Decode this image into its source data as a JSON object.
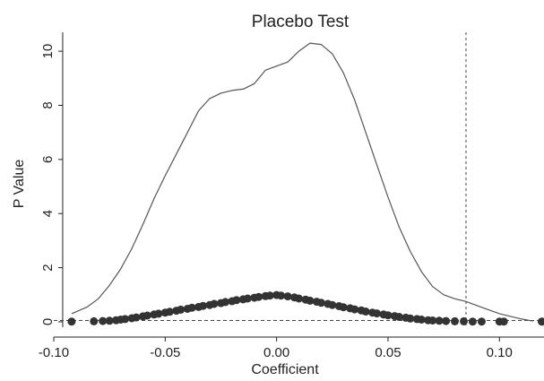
{
  "chart_data": {
    "type": "scatter",
    "title": "Placebo Test",
    "xlabel": "Coefficient",
    "ylabel": "P Value",
    "xlim": [
      -0.1,
      0.12
    ],
    "ylim": [
      -0.2,
      10.7
    ],
    "xticks": [
      -0.1,
      -0.05,
      0.0,
      0.05,
      0.1
    ],
    "xtick_labels": [
      "-0.10",
      "-0.05",
      "0.00",
      "0.05",
      "0.10"
    ],
    "yticks": [
      0,
      2,
      4,
      6,
      8,
      10
    ],
    "ytick_labels": [
      "0",
      "2",
      "4",
      "6",
      "8",
      "10"
    ],
    "grid": false,
    "reference_lines": {
      "vertical_x": 0.085,
      "horizontal_y": 0.05,
      "style": "dashed"
    },
    "density_curve": {
      "x": [
        -0.092,
        -0.085,
        -0.08,
        -0.075,
        -0.07,
        -0.065,
        -0.06,
        -0.055,
        -0.05,
        -0.045,
        -0.04,
        -0.035,
        -0.03,
        -0.025,
        -0.02,
        -0.015,
        -0.01,
        -0.005,
        0.0,
        0.005,
        0.01,
        0.015,
        0.02,
        0.025,
        0.03,
        0.035,
        0.04,
        0.045,
        0.05,
        0.055,
        0.06,
        0.065,
        0.07,
        0.075,
        0.08,
        0.085,
        0.09,
        0.095,
        0.1,
        0.105,
        0.11,
        0.115
      ],
      "y": [
        0.3,
        0.55,
        0.85,
        1.35,
        1.95,
        2.7,
        3.6,
        4.55,
        5.4,
        6.2,
        7.0,
        7.8,
        8.25,
        8.45,
        8.55,
        8.6,
        8.8,
        9.3,
        9.45,
        9.6,
        10.0,
        10.3,
        10.25,
        9.9,
        9.2,
        8.2,
        7.0,
        5.8,
        4.6,
        3.5,
        2.6,
        1.85,
        1.3,
        1.0,
        0.85,
        0.75,
        0.6,
        0.45,
        0.3,
        0.2,
        0.1,
        0.03
      ]
    },
    "points": {
      "x": [
        -0.092,
        -0.082,
        -0.078,
        -0.075,
        -0.072,
        -0.07,
        -0.068,
        -0.065,
        -0.063,
        -0.06,
        -0.058,
        -0.055,
        -0.053,
        -0.05,
        -0.048,
        -0.045,
        -0.043,
        -0.04,
        -0.038,
        -0.035,
        -0.033,
        -0.03,
        -0.028,
        -0.025,
        -0.023,
        -0.02,
        -0.018,
        -0.015,
        -0.013,
        -0.01,
        -0.008,
        -0.005,
        -0.003,
        0.0,
        0.002,
        0.005,
        0.008,
        0.01,
        0.013,
        0.015,
        0.018,
        0.02,
        0.023,
        0.025,
        0.028,
        0.03,
        0.033,
        0.035,
        0.038,
        0.04,
        0.043,
        0.045,
        0.048,
        0.05,
        0.053,
        0.055,
        0.058,
        0.06,
        0.063,
        0.065,
        0.068,
        0.07,
        0.073,
        0.076,
        0.08,
        0.084,
        0.088,
        0.092,
        0.1,
        0.102,
        0.119
      ],
      "y": [
        0.01,
        0.02,
        0.03,
        0.04,
        0.06,
        0.08,
        0.1,
        0.13,
        0.16,
        0.2,
        0.23,
        0.27,
        0.3,
        0.34,
        0.37,
        0.41,
        0.45,
        0.48,
        0.52,
        0.55,
        0.59,
        0.62,
        0.66,
        0.69,
        0.73,
        0.76,
        0.8,
        0.83,
        0.86,
        0.89,
        0.92,
        0.95,
        0.97,
        0.99,
        0.97,
        0.94,
        0.9,
        0.86,
        0.82,
        0.78,
        0.74,
        0.7,
        0.66,
        0.62,
        0.58,
        0.54,
        0.5,
        0.46,
        0.42,
        0.38,
        0.34,
        0.31,
        0.27,
        0.24,
        0.21,
        0.18,
        0.15,
        0.12,
        0.1,
        0.08,
        0.06,
        0.05,
        0.04,
        0.03,
        0.02,
        0.02,
        0.01,
        0.01,
        0.01,
        0.01,
        0.01
      ]
    },
    "colors": {
      "curve": "#555555",
      "points": "#333333",
      "axis": "#222222",
      "reference": "#444444"
    }
  }
}
